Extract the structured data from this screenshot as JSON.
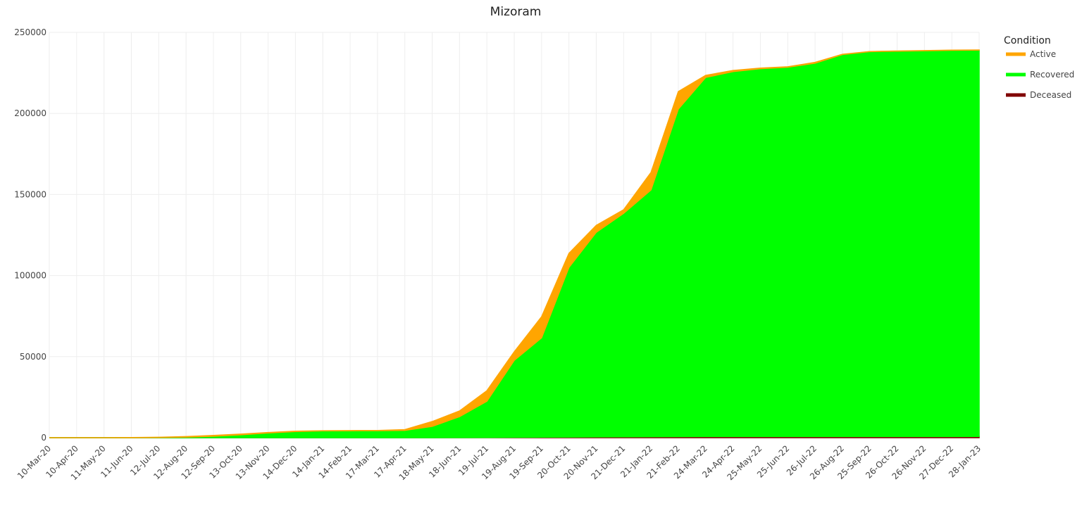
{
  "chart_data": {
    "type": "stacked_area",
    "title": "Mizoram",
    "legend_title": "Condition",
    "legend": "right",
    "grid": true,
    "categories": [
      "10-Mar-20",
      "10-Apr-20",
      "11-May-20",
      "11-Jun-20",
      "12-Jul-20",
      "12-Aug-20",
      "12-Sep-20",
      "13-Oct-20",
      "13-Nov-20",
      "14-Dec-20",
      "14-Jan-21",
      "14-Feb-21",
      "17-Mar-21",
      "17-Apr-21",
      "18-May-21",
      "18-Jun-21",
      "19-Jul-21",
      "19-Aug-21",
      "19-Sep-21",
      "20-Oct-21",
      "20-Nov-21",
      "21-Dec-21",
      "21-Jan-22",
      "21-Feb-22",
      "24-Mar-22",
      "24-Apr-22",
      "25-May-22",
      "25-Jun-22",
      "26-Jul-22",
      "26-Aug-22",
      "25-Sep-22",
      "26-Oct-22",
      "26-Nov-22",
      "27-Dec-22",
      "28-Jan-23"
    ],
    "ylim": [
      0,
      250000
    ],
    "yticks": [
      0,
      50000,
      100000,
      150000,
      200000,
      250000
    ],
    "series": [
      {
        "name": "Active",
        "color": "#ffa500",
        "values": [
          0,
          1,
          1,
          50,
          100,
          300,
          500,
          400,
          300,
          200,
          100,
          100,
          100,
          500,
          3000,
          3500,
          6500,
          5300,
          13000,
          8700,
          4300,
          2200,
          10800,
          10800,
          1300,
          700,
          400,
          300,
          500,
          200,
          100,
          100,
          100,
          100,
          100
        ]
      },
      {
        "name": "Recovered",
        "color": "#00ff00",
        "values": [
          0,
          0,
          0,
          50,
          150,
          400,
          900,
          1800,
          2900,
          3800,
          4200,
          4300,
          4350,
          4480,
          6950,
          12940,
          22400,
          47500,
          61300,
          104600,
          126200,
          137850,
          152200,
          202050,
          221520,
          225100,
          226900,
          227800,
          230300,
          235600,
          237400,
          237700,
          237950,
          238200,
          238300
        ]
      },
      {
        "name": "Deceased",
        "color": "#800000",
        "values": [
          0,
          0,
          0,
          0,
          0,
          0,
          0,
          0,
          5,
          8,
          9,
          10,
          10,
          12,
          20,
          60,
          100,
          200,
          300,
          400,
          500,
          550,
          600,
          650,
          680,
          700,
          700,
          700,
          700,
          700,
          700,
          700,
          700,
          720,
          733
        ]
      }
    ]
  }
}
